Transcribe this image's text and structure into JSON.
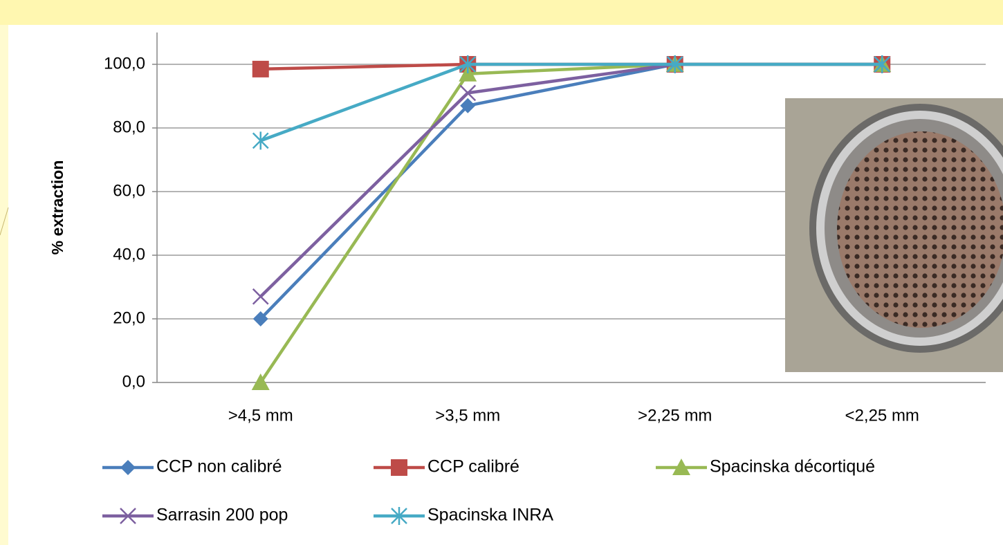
{
  "chart_data": {
    "type": "line",
    "y_label": "% extraction",
    "categories": [
      ">4,5 mm",
      ">3,5 mm",
      ">2,25 mm",
      "<2,25 mm"
    ],
    "ylim": [
      0,
      110
    ],
    "yticks": [
      {
        "value": 0,
        "label": "0,0"
      },
      {
        "value": 20,
        "label": "20,0"
      },
      {
        "value": 40,
        "label": "40,0"
      },
      {
        "value": 60,
        "label": "60,0"
      },
      {
        "value": 80,
        "label": "80,0"
      },
      {
        "value": 100,
        "label": "100,0"
      }
    ],
    "grid": true,
    "legend": "bottom",
    "series": [
      {
        "name": "CCP non calibré",
        "color": "#4a7ebb",
        "marker": "diamond",
        "values": [
          20,
          87,
          100,
          100
        ]
      },
      {
        "name": "CCP  calibré",
        "color": "#be4b48",
        "marker": "square",
        "values": [
          98.5,
          100,
          100,
          100
        ]
      },
      {
        "name": "Spacinska décortiqué",
        "color": "#98b954",
        "marker": "triangle",
        "values": [
          0,
          97,
          100,
          100
        ]
      },
      {
        "name": "Sarrasin 200 pop",
        "color": "#7d60a0",
        "marker": "x",
        "values": [
          27,
          91,
          100,
          100
        ]
      },
      {
        "name": "Spacinska INRA",
        "color": "#46aac5",
        "marker": "asterisk",
        "values": [
          76,
          100,
          100,
          100
        ]
      }
    ]
  }
}
